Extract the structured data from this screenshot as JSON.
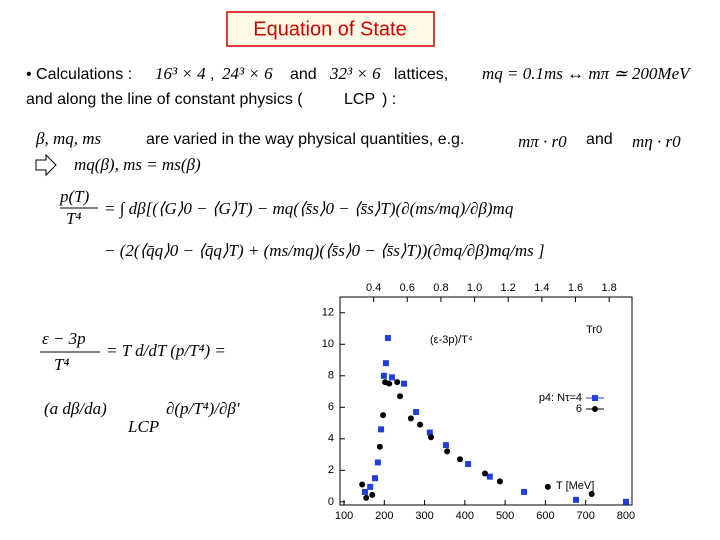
{
  "title": "Equation of State",
  "line1": {
    "lead": "• Calculations :",
    "lattice1": "16³ × 4",
    "sep": ",",
    "lattice2": "24³ × 6",
    "and": "and",
    "lattice3": "32³ × 6",
    "tail": "lattices,",
    "mass": "mq = 0.1ms ↔ mπ ≃ 200MeV"
  },
  "line2": {
    "before": "and   along the line of constant physics (",
    "lcp": "LCP",
    "after": ") :"
  },
  "line3": {
    "params": "β,  mq, ms",
    "text": "are varied in the way physical quantities, e.g.",
    "q1": "mπ · r0",
    "and": "and",
    "q2": "mη · r0"
  },
  "arrow_line": "mq(β),   ms = ms(β)",
  "pressure": {
    "num": "p(T)",
    "den": "T⁴",
    "rhs1": "= ∫ dβ[(⟨G⟩0 − ⟨G⟩T) − mq(⟨s̄s⟩0 − ⟨s̄s⟩T)(∂(ms/mq)/∂β)mq",
    "rhs2": "− (2(⟨q̄q⟩0 − ⟨q̄q⟩T) + (ms/mq)(⟨s̄s⟩0 − ⟨s̄s⟩T))(∂mq/∂β)mq/ms ]"
  },
  "energy": {
    "num": "ε − 3p",
    "den": "T⁴",
    "rhs": "= T d/dT (p/T⁴) =",
    "factor": "(a dβ/da)",
    "lcp": "LCP",
    "deriv": "∂(p/T⁴)/∂β′"
  },
  "chart_data": {
    "type": "scatter",
    "xlabel": "T [MeV]",
    "x2label": "Tr0",
    "ylabel": "(ε-3p)/T⁴",
    "xlim": [
      90,
      815
    ],
    "xticks": [
      100,
      200,
      300,
      400,
      500,
      600,
      700,
      800
    ],
    "x2lim": [
      0.2,
      1.936
    ],
    "x2ticks": [
      0.4,
      0.6,
      0.8,
      {
        "value": 1.0,
        "label": "1.0"
      },
      1.2,
      1.4,
      1.6,
      1.8
    ],
    "ylim": [
      -0.2,
      13
    ],
    "yticks": [
      0,
      2,
      4,
      6,
      8,
      10,
      12
    ],
    "series": [
      {
        "name": "p4: Nτ=4",
        "color": "#1f3fd8",
        "marker": "square",
        "x": [
          152,
          165,
          177,
          184,
          192,
          199,
          204,
          209,
          219,
          249,
          279,
          313,
          353,
          408,
          462,
          547,
          676,
          800
        ],
        "values": [
          0.63,
          0.95,
          1.5,
          2.5,
          4.6,
          8.0,
          8.8,
          10.4,
          7.9,
          7.5,
          5.7,
          4.4,
          3.6,
          2.4,
          1.6,
          0.63,
          0.13,
          0.0
        ]
      },
      {
        "name": "6",
        "color": "#000000",
        "marker": "circle",
        "x": [
          145,
          155,
          170,
          189,
          197,
          202,
          212,
          232,
          239,
          266,
          289,
          316,
          356,
          388,
          450,
          487,
          606,
          715
        ],
        "values": [
          1.1,
          0.25,
          0.44,
          3.5,
          5.5,
          7.6,
          7.5,
          7.6,
          6.7,
          5.3,
          4.9,
          4.1,
          3.2,
          2.7,
          1.8,
          1.3,
          0.95,
          0.5
        ]
      }
    ]
  }
}
